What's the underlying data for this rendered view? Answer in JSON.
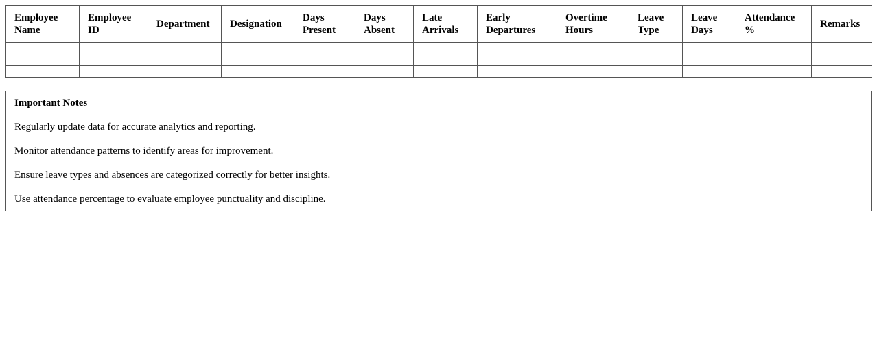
{
  "attendance_table": {
    "headers": [
      "Employee Name",
      "Employee ID",
      "Department",
      "Designation",
      "Days Present",
      "Days Absent",
      "Late Arrivals",
      "Early Departures",
      "Overtime Hours",
      "Leave Type",
      "Leave Days",
      "Attendance %",
      "Remarks"
    ],
    "rows": [
      [
        "",
        "",
        "",
        "",
        "",
        "",
        "",
        "",
        "",
        "",
        "",
        "",
        ""
      ],
      [
        "",
        "",
        "",
        "",
        "",
        "",
        "",
        "",
        "",
        "",
        "",
        "",
        ""
      ],
      [
        "",
        "",
        "",
        "",
        "",
        "",
        "",
        "",
        "",
        "",
        "",
        "",
        ""
      ]
    ]
  },
  "notes": {
    "title": "Important Notes",
    "items": [
      "Regularly update data for accurate analytics and reporting.",
      "Monitor attendance patterns to identify areas for improvement.",
      "Ensure leave types and absences are categorized correctly for better insights.",
      "Use attendance percentage to evaluate employee punctuality and discipline."
    ]
  }
}
